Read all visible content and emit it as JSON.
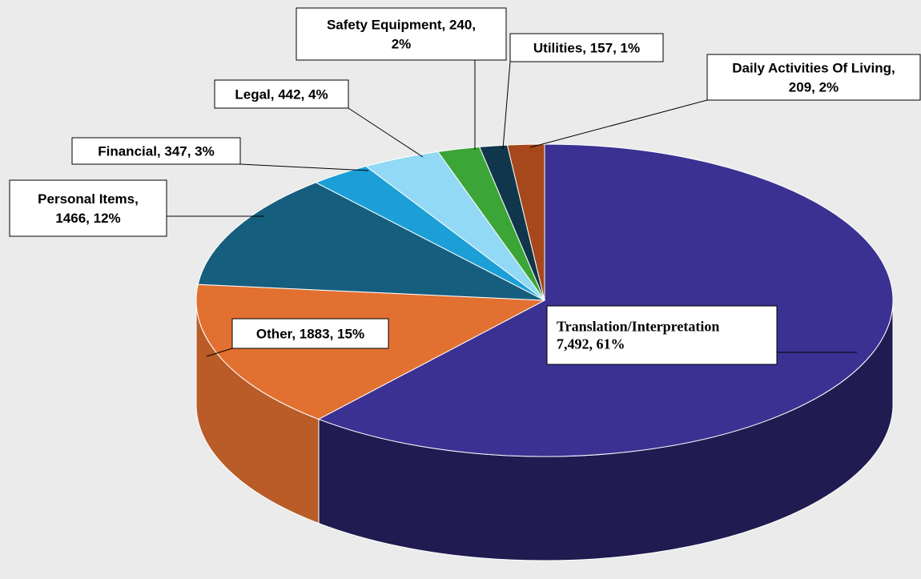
{
  "chart_data": {
    "type": "pie3d",
    "categories": [
      "Translation/Interpretation",
      "Other",
      "Personal Items",
      "Financial",
      "Legal",
      "Safety Equipment",
      "Utilities",
      "Daily Activities Of Living"
    ],
    "values": [
      7492,
      1883,
      1466,
      347,
      442,
      240,
      157,
      209
    ],
    "percents": [
      61,
      15,
      12,
      3,
      4,
      2,
      1,
      2
    ],
    "labels": [
      [
        "Translation/Interpretation",
        "7,492, 61%"
      ],
      [
        "Other, 1883, 15%"
      ],
      [
        "Personal Items,",
        "1466, 12%"
      ],
      [
        "Financial, 347, 3%"
      ],
      [
        "Legal, 442, 4%"
      ],
      [
        "Safety Equipment, 240,",
        "2%"
      ],
      [
        "Utilities, 157, 1%"
      ],
      [
        "Daily Activities Of Living,",
        "209, 2%"
      ]
    ],
    "colors": [
      "#3a3192",
      "#e27031",
      "#165e7e",
      "#1b9fd6",
      "#91d9f5",
      "#3ba537",
      "#10364b",
      "#a6481b"
    ]
  }
}
